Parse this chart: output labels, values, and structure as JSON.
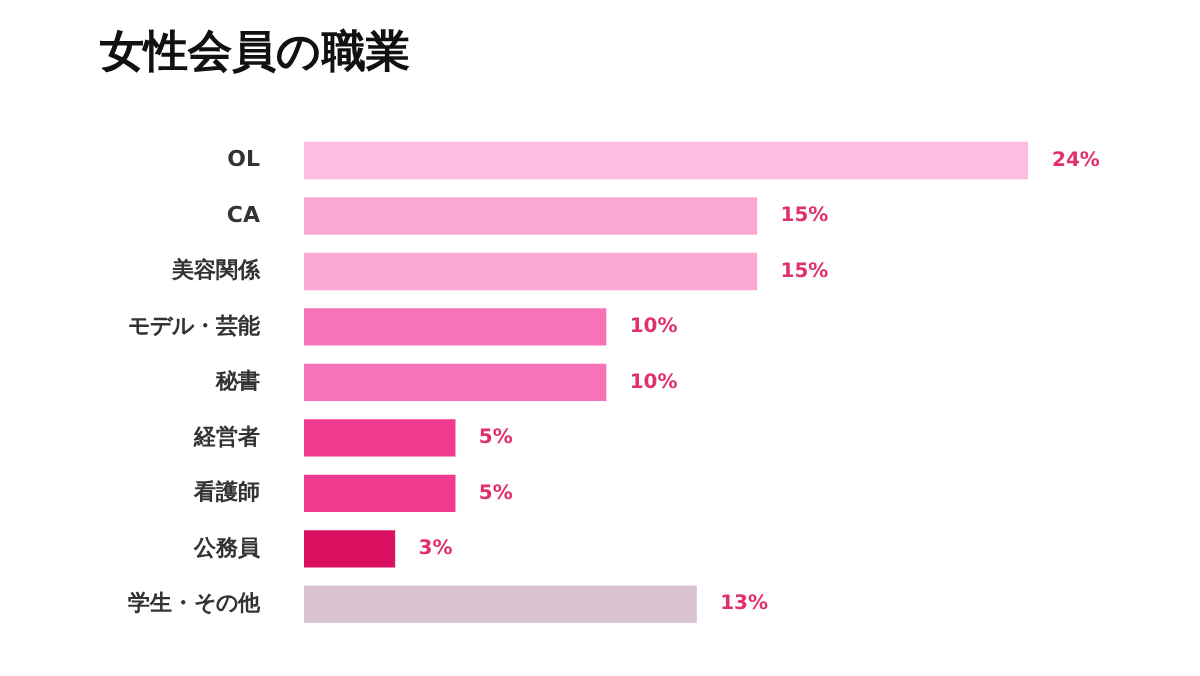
{
  "chart_data": {
    "type": "bar",
    "orientation": "horizontal",
    "title": "女性会員の職業",
    "categories": [
      "OL",
      "CA",
      "美容関係",
      "モデル・芸能",
      "秘書",
      "経営者",
      "看護師",
      "公務員",
      "学生・その他"
    ],
    "values": [
      24,
      15,
      15,
      10,
      10,
      5,
      5,
      3,
      13
    ],
    "colors": [
      "#fdbde2",
      "#fca8d6",
      "#fca8d6",
      "#f872b9",
      "#f872b9",
      "#f13b8f",
      "#f13b8f",
      "#da1160",
      "#d9c3d1"
    ],
    "value_labels": [
      "24%",
      "15%",
      "15%",
      "10%",
      "10%",
      "5%",
      "5%",
      "3%",
      "13%"
    ],
    "legend": false
  }
}
